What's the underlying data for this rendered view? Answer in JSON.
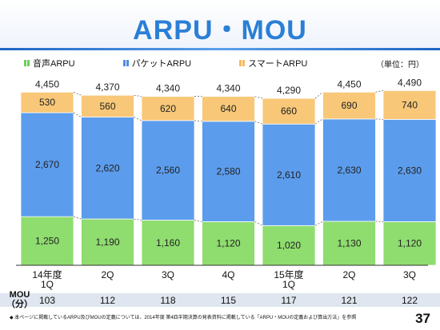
{
  "title": "ARPU・MOU",
  "unit_note": "（単位：円）",
  "legend": [
    {
      "label": "音声ARPU",
      "color": "#6fce5a"
    },
    {
      "label": "パケットARPU",
      "color": "#4f8ee6"
    },
    {
      "label": "スマートARPU",
      "color": "#f6b85e"
    }
  ],
  "colors": {
    "voice": "#8fdc6f",
    "packet": "#5c9cec",
    "smart": "#f8c878"
  },
  "chart_data": {
    "type": "bar",
    "stacked": true,
    "categories": [
      "14年度\n1Q",
      "2Q",
      "3Q",
      "4Q",
      "15年度\n1Q",
      "2Q",
      "3Q"
    ],
    "series": [
      {
        "name": "音声ARPU",
        "values": [
          1250,
          1190,
          1160,
          1120,
          1020,
          1130,
          1120
        ]
      },
      {
        "name": "パケットARPU",
        "values": [
          2670,
          2620,
          2560,
          2580,
          2610,
          2630,
          2630
        ]
      },
      {
        "name": "スマートARPU",
        "values": [
          530,
          560,
          620,
          640,
          660,
          690,
          740
        ]
      }
    ],
    "totals": [
      4450,
      4370,
      4340,
      4340,
      4290,
      4450,
      4490
    ],
    "ylim": [
      0,
      4600
    ],
    "grid": false,
    "legend_position": "top-left"
  },
  "mou": {
    "label": "MOU\n（分）",
    "values": [
      "103",
      "112",
      "118",
      "115",
      "117",
      "121",
      "122"
    ]
  },
  "footnote": "◆ 本ページに掲載しているARPU及びMOUの定義については、2014年度 第4四半期決算の発表資料に掲載している「ARPU・MOUの定義および算出方法」を参照",
  "page_number": "37"
}
